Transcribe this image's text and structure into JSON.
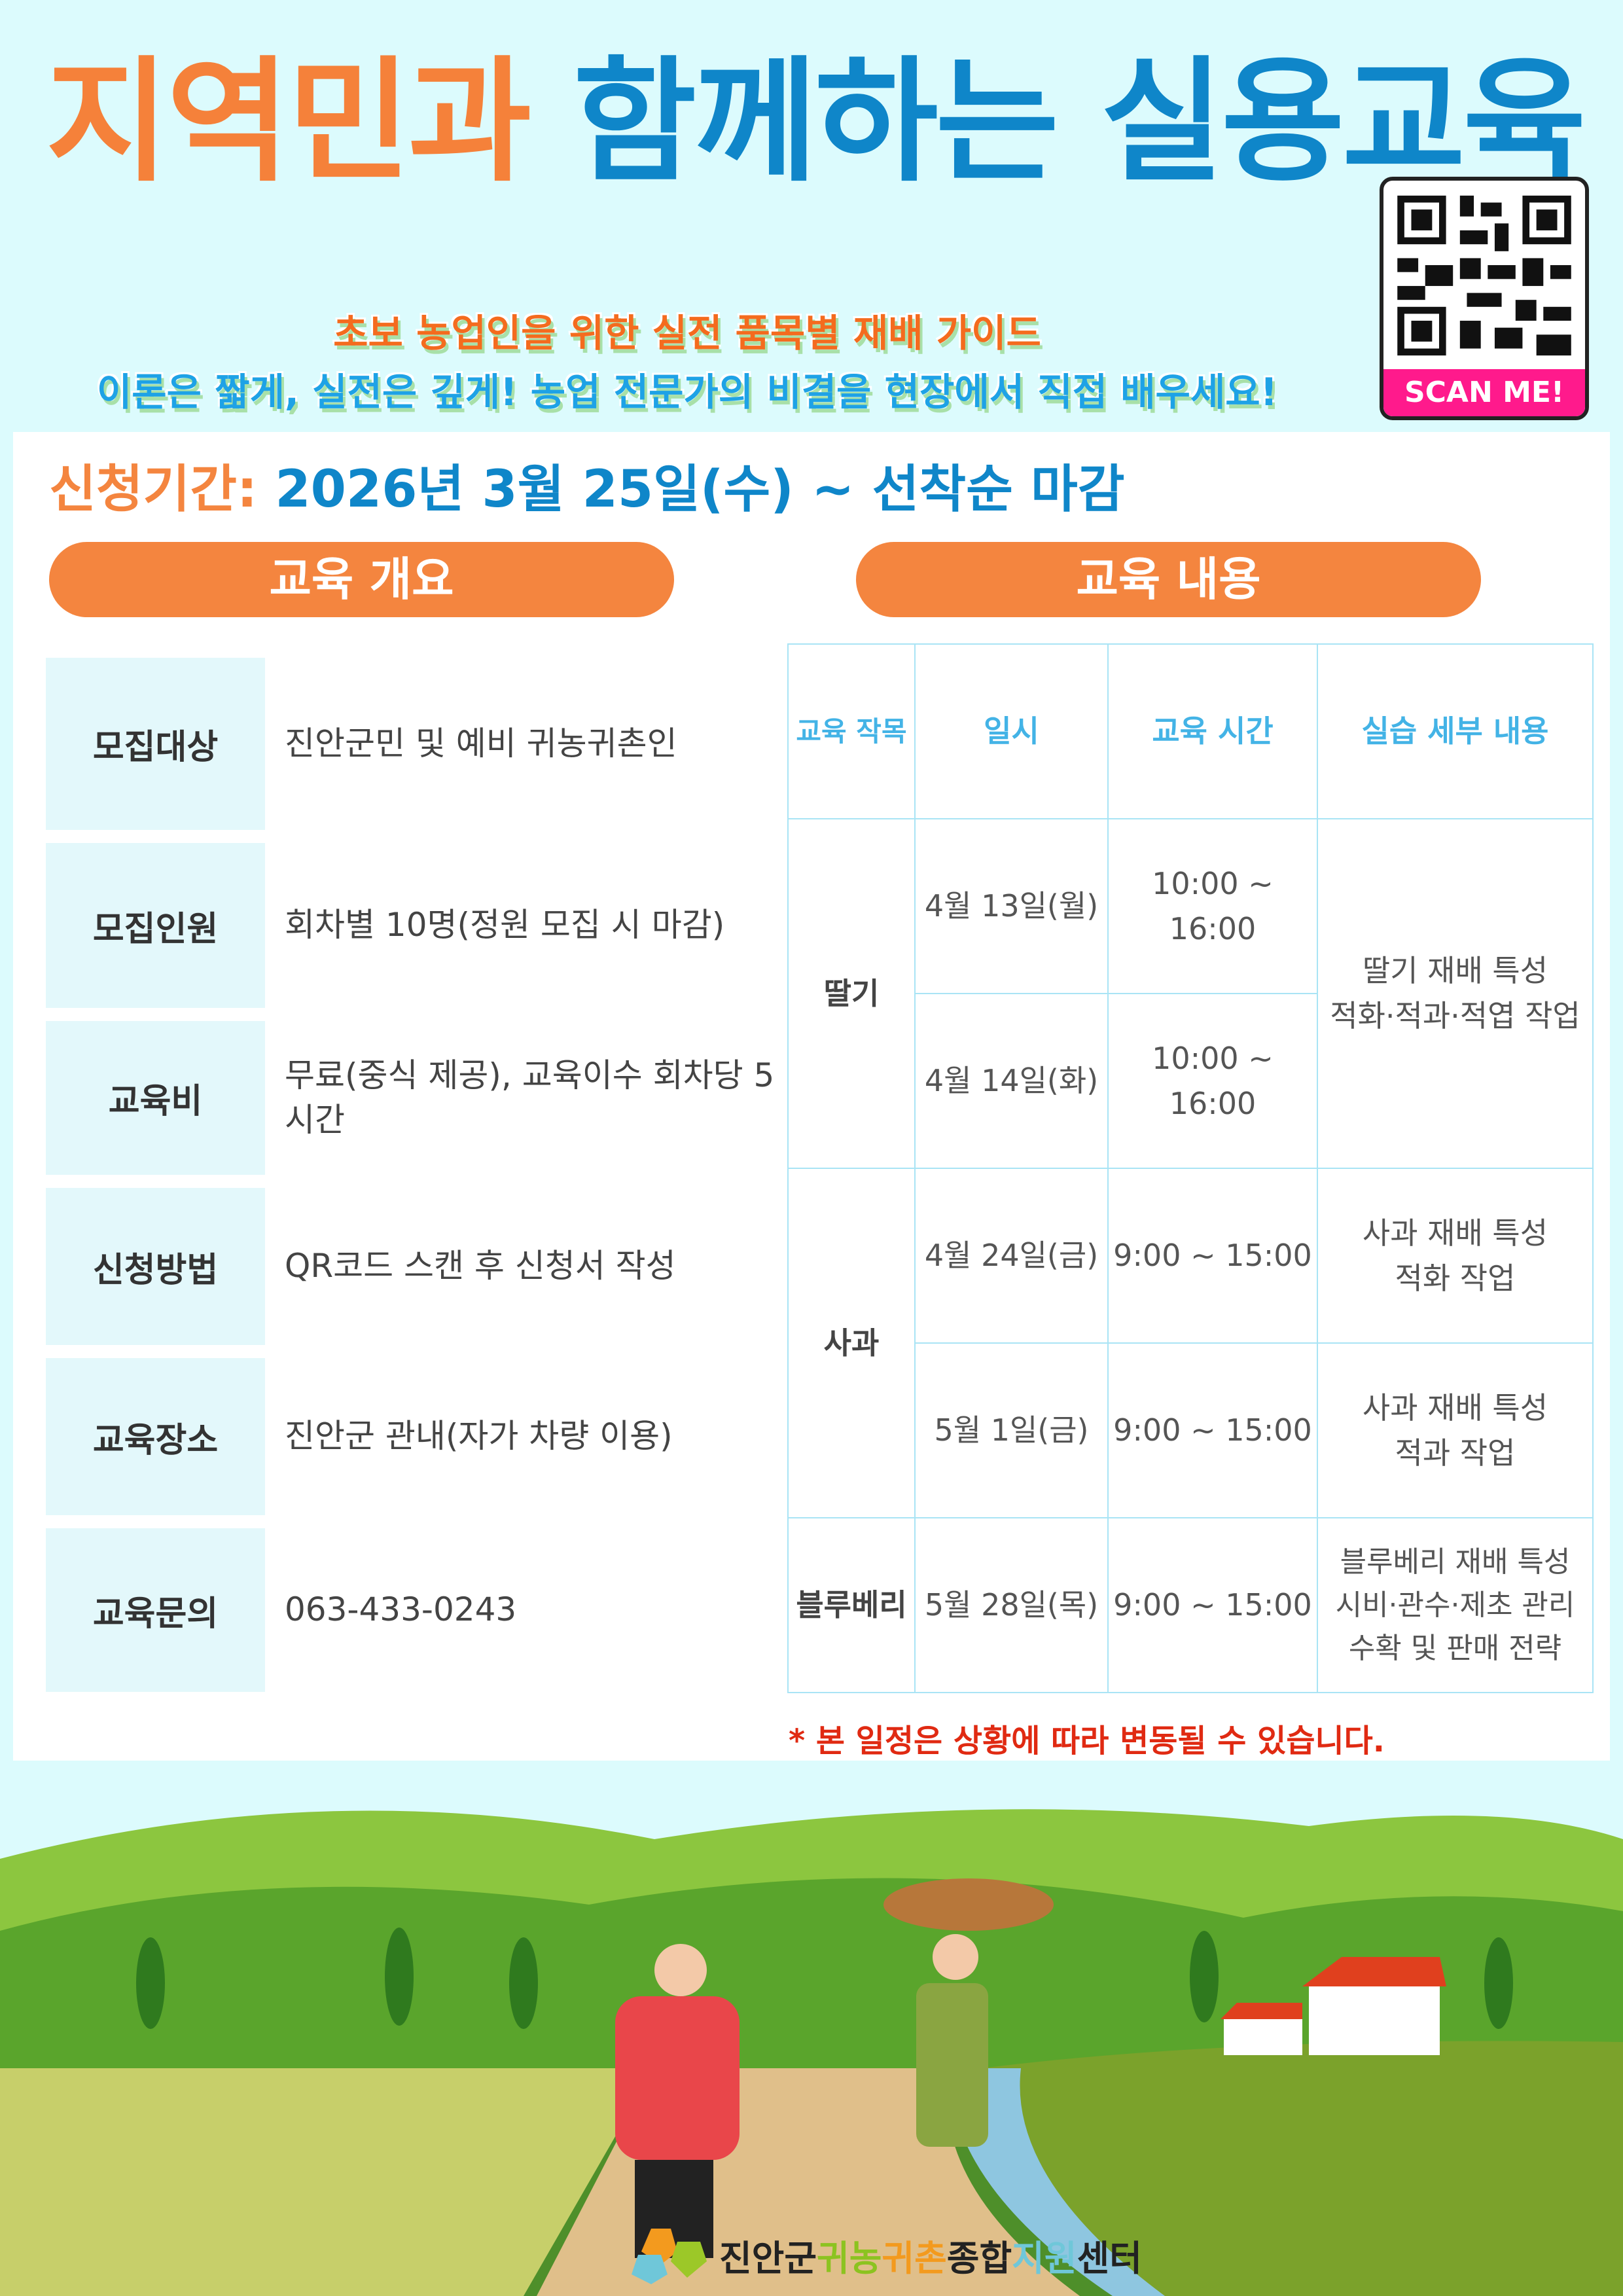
{
  "header": {
    "title_part1": "지역민과",
    "title_part2": "함께하는 실용교육",
    "subtitle1": "초보 농업인을 위한 실전 품목별 재배 가이드",
    "subtitle2": "이론은 짧게, 실전은 깊게! 농업 전문가의 비결을 현장에서 직접 배우세요!",
    "qr_label": "SCAN ME!"
  },
  "period": {
    "label": "신청기간:",
    "value": "2026년 3월 25일(수) ~ 선착순 마감"
  },
  "overview": {
    "heading": "교육 개요",
    "rows": [
      {
        "label": "모집대상",
        "value": "진안군민 및 예비 귀농귀촌인"
      },
      {
        "label": "모집인원",
        "value": "회차별 10명(정원 모집 시 마감)"
      },
      {
        "label": "교육비",
        "value": "무료(중식 제공), 교육이수 회차당 5시간"
      },
      {
        "label": "신청방법",
        "value": "QR코드 스캔 후 신청서 작성"
      },
      {
        "label": "교육장소",
        "value": "진안군 관내(자가 차량 이용)"
      },
      {
        "label": "교육문의",
        "value": "063-433-0243"
      }
    ]
  },
  "content": {
    "heading": "교육 내용",
    "columns": [
      "교육 작목",
      "일시",
      "교육 시간",
      "실습 세부 내용"
    ],
    "rows": [
      {
        "crop": "딸기",
        "date": "4월 13일(월)",
        "time": "10:00 ~ 16:00",
        "detail": "딸기 재배 특성\n적화·적과·적엽 작업"
      },
      {
        "date": "4월 14일(화)",
        "time": "10:00 ~ 16:00"
      },
      {
        "crop": "사과",
        "date": "4월 24일(금)",
        "time": "9:00 ~ 15:00",
        "detail": "사과 재배 특성\n적화 작업"
      },
      {
        "date": "5월 1일(금)",
        "time": "9:00 ~ 15:00",
        "detail": "사과 재배 특성\n적과 작업"
      },
      {
        "crop": "블루베리",
        "date": "5월 28일(목)",
        "time": "9:00 ~ 15:00",
        "detail": "블루베리 재배 특성\n시비·관수·제초 관리\n수확 및 판매 전략"
      }
    ],
    "note": "* 본 일정은 상황에 따라 변동될 수 있습니다."
  },
  "footer": {
    "logo_parts": [
      "진안군",
      "귀농",
      "귀촌",
      "종합",
      "지원",
      "센터"
    ]
  },
  "colors": {
    "orange": "#f4853f",
    "blue": "#0f86c9",
    "light_bg": "#dcfbfd",
    "note_red": "#e02a12"
  }
}
